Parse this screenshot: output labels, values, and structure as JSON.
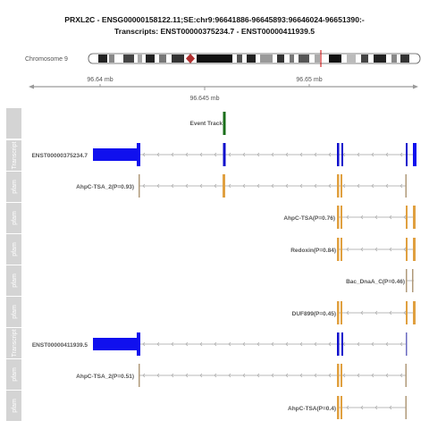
{
  "title": {
    "line1": "PRXL2C - ENSG00000158122.11;SE:chr9:96641886-96645893:96646024-96651390:-",
    "line2": "Transcripts: ENST00000375234.7 - ENST00000411939.5"
  },
  "chromosome": {
    "label": "Chromosome 9",
    "highlight_color": "#cc0000"
  },
  "axis": {
    "ticks": [
      {
        "label": "96.64 mb",
        "value": 96.64
      },
      {
        "label": "96.65 mb",
        "value": 96.65
      }
    ],
    "bottom_tick": {
      "label": "96.645 mb",
      "value": 96.645
    }
  },
  "event_track": {
    "label": "Event Track",
    "color": "#1a6e1a"
  },
  "tracks": [
    {
      "side": "Transcript",
      "label": "ENST00000375234.7",
      "kind": "transcript",
      "color": "#1010cc"
    },
    {
      "side": "pfam",
      "label": "AhpC-TSA_2(P=0.93)",
      "kind": "pfam",
      "color": "#e0a040"
    },
    {
      "side": "pfam",
      "label": "AhpC-TSA(P=0.76)",
      "kind": "pfam",
      "color": "#e0a040"
    },
    {
      "side": "pfam",
      "label": "Redoxin(P=0.84)",
      "kind": "pfam",
      "color": "#e0a040"
    },
    {
      "side": "pfam",
      "label": "Bac_DnaA_C(P=0.46)",
      "kind": "pfam",
      "color": "#e0a040"
    },
    {
      "side": "pfam",
      "label": "DUF899(P=0.45)",
      "kind": "pfam",
      "color": "#e0a040"
    },
    {
      "side": "Transcript",
      "label": "ENST00000411939.5",
      "kind": "transcript",
      "color": "#1010cc"
    },
    {
      "side": "pfam",
      "label": "AhpC-TSA_2(P=0.51)",
      "kind": "pfam",
      "color": "#e0a040"
    },
    {
      "side": "pfam",
      "label": "AhpC-TSA(P=0.4)",
      "kind": "pfam",
      "color": "#e0a040"
    }
  ],
  "colors": {
    "side_panel": "#d4d4d4",
    "intron": "#b8b8b8",
    "axis": "#9a9a9a",
    "pfam_thin": "#b09a7a"
  }
}
